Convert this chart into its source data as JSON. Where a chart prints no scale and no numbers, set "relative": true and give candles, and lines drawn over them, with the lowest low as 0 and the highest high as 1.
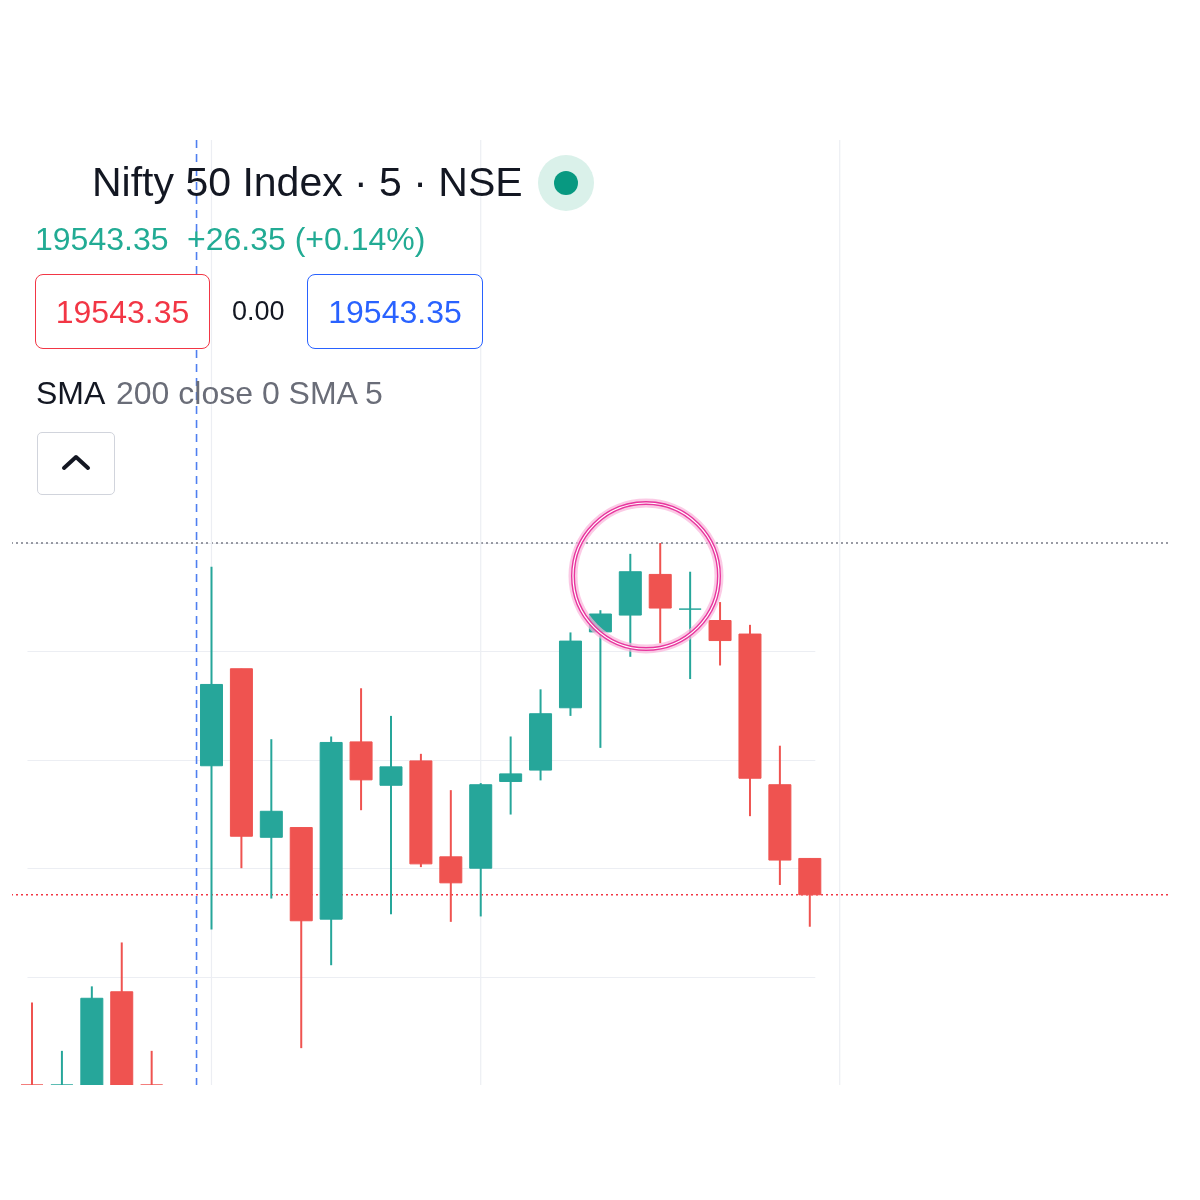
{
  "chart_data": {
    "type": "candlestick",
    "title": "Nifty 50 Index · 5 · NSE",
    "annotations": [
      "19543.35",
      "+26.35 (+0.14%)",
      "19543.35",
      "0.00",
      "19543.35",
      "SMA",
      "200 close 0 SMA 5"
    ],
    "categories": [
      null,
      null,
      null,
      null,
      null,
      null,
      null,
      null,
      null,
      null,
      null,
      null,
      null,
      null,
      null,
      null,
      null,
      null,
      null,
      null,
      null,
      null,
      null,
      null,
      null,
      null,
      null
    ],
    "ohlc": [
      [
        0,
        0.152,
        0,
        0
      ],
      [
        0,
        0.063,
        0,
        0
      ],
      [
        0,
        0.182,
        0,
        0.16
      ],
      [
        0.172,
        0.263,
        0,
        0
      ],
      [
        0,
        0.063,
        0,
        0
      ],
      null,
      [
        0.589,
        0.956,
        0.287,
        0.739
      ],
      [
        0.768,
        0.768,
        0.4,
        0.459
      ],
      [
        0.457,
        0.638,
        0.344,
        0.505
      ],
      [
        0.475,
        0.475,
        0.068,
        0.303
      ],
      [
        0.306,
        0.643,
        0.221,
        0.632
      ],
      [
        0.633,
        0.732,
        0.507,
        0.563
      ],
      [
        0.553,
        0.681,
        0.315,
        0.587
      ],
      [
        0.598,
        0.611,
        0.402,
        0.408
      ],
      [
        0.421,
        0.544,
        0.301,
        0.373
      ],
      [
        0.4,
        0.557,
        0.311,
        0.554
      ],
      [
        0.56,
        0.643,
        0.499,
        0.574
      ],
      [
        0.581,
        0.73,
        0.562,
        0.685
      ],
      [
        0.696,
        0.835,
        0.681,
        0.819
      ],
      [
        0.836,
        0.876,
        0.622,
        0.869
      ],
      [
        0.867,
        0.98,
        0.79,
        0.947
      ],
      [
        0.942,
        1.0,
        0.815,
        0.88
      ],
      [
        0.878,
        0.947,
        0.749,
        0.878
      ],
      [
        0.857,
        0.891,
        0.774,
        0.82
      ],
      [
        0.832,
        0.849,
        0.496,
        0.566
      ],
      [
        0.554,
        0.626,
        0.369,
        0.415
      ],
      [
        0.418,
        0.418,
        0.292,
        0.351
      ]
    ],
    "colors": [
      "#ef5350",
      "#26a69a",
      "#26a69a",
      "#ef5350",
      "#ef5350",
      null,
      "#26a69a",
      "#ef5350",
      "#26a69a",
      "#ef5350",
      "#26a69a",
      "#ef5350",
      "#26a69a",
      "#ef5350",
      "#ef5350",
      "#26a69a",
      "#26a69a",
      "#26a69a",
      "#26a69a",
      "#26a69a",
      "#26a69a",
      "#ef5350",
      "#26a69a",
      "#ef5350",
      "#ef5350",
      "#ef5350",
      "#ef5350"
    ],
    "relative": true,
    "ref_lines": [
      {
        "axis": "y",
        "value": 1,
        "color": "#787b86",
        "line_style": "dotted"
      },
      {
        "axis": "y",
        "value": 0.351,
        "color": "#f23645",
        "line_style": "dotted"
      }
    ],
    "grid": true
  }
}
